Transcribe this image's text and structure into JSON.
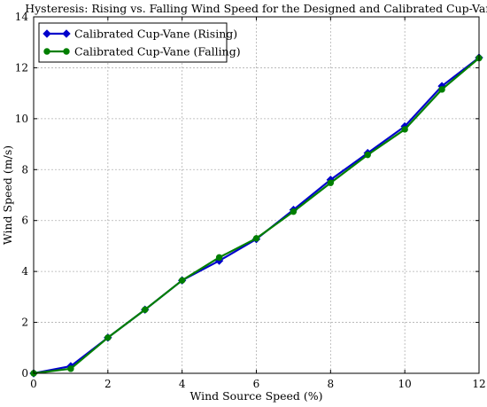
{
  "chart_data": {
    "type": "line",
    "title": "Hysteresis: Rising vs. Falling Wind Speed for the Designed and Calibrated Cup-Vane",
    "xlabel": "Wind Source Speed (%)",
    "ylabel": "Wind Speed (m/s)",
    "xlim": [
      0,
      12
    ],
    "ylim": [
      0,
      14
    ],
    "xticks": [
      0,
      2,
      4,
      6,
      8,
      10,
      12
    ],
    "yticks": [
      0,
      2,
      4,
      6,
      8,
      10,
      12,
      14
    ],
    "grid": true,
    "legend_position": "top-left",
    "x": [
      0,
      1,
      2,
      3,
      4,
      5,
      6,
      7,
      8,
      9,
      10,
      11,
      12
    ],
    "series": [
      {
        "name": "Calibrated Cup-Vane (Rising)",
        "color": "#0000cc",
        "marker": "diamond",
        "values": [
          0.0,
          0.28,
          1.4,
          2.5,
          3.65,
          4.42,
          5.27,
          6.42,
          7.6,
          8.65,
          9.7,
          11.28,
          12.4
        ]
      },
      {
        "name": "Calibrated Cup-Vane (Falling)",
        "color": "#007f00",
        "marker": "circle",
        "values": [
          0.0,
          0.18,
          1.4,
          2.5,
          3.65,
          4.55,
          5.3,
          6.35,
          7.48,
          8.58,
          9.58,
          11.15,
          12.38
        ]
      }
    ]
  }
}
